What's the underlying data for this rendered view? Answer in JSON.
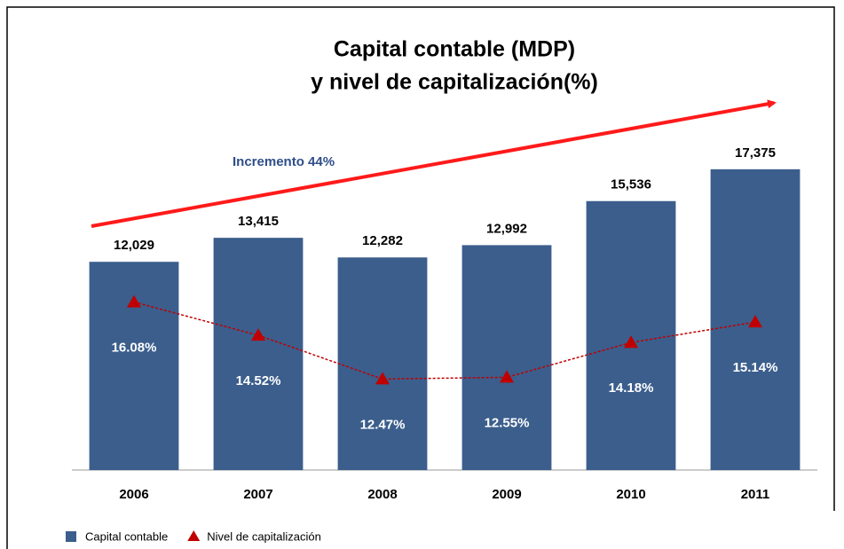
{
  "chart_data": {
    "type": "bar_line",
    "title": "Capital contable (MDP)",
    "subtitle": "y nivel de capitalización(%)",
    "annotation": "Incremento 44%",
    "categories": [
      "2006",
      "2007",
      "2008",
      "2009",
      "2010",
      "2011"
    ],
    "series": [
      {
        "name": "Capital contable",
        "type": "bar",
        "color": "#3b5e8c",
        "values": [
          12029,
          13415,
          12282,
          12992,
          15536,
          17375
        ],
        "value_labels": [
          "12,029",
          "13,415",
          "12,282",
          "12,992",
          "15,536",
          "17,375"
        ]
      },
      {
        "name": "Nivel de capitalización",
        "type": "line",
        "axis": "y2",
        "color": "#c00000",
        "values": [
          16.08,
          14.52,
          12.47,
          12.55,
          14.18,
          15.14
        ],
        "value_labels": [
          "16.08%",
          "14.52%",
          "12.47%",
          "12.55%",
          "14.18%",
          "15.14%"
        ]
      }
    ],
    "ylim": [
      0,
      25000
    ],
    "y2lim": [
      8.2,
      28.5
    ],
    "legend": "bottom-left"
  }
}
